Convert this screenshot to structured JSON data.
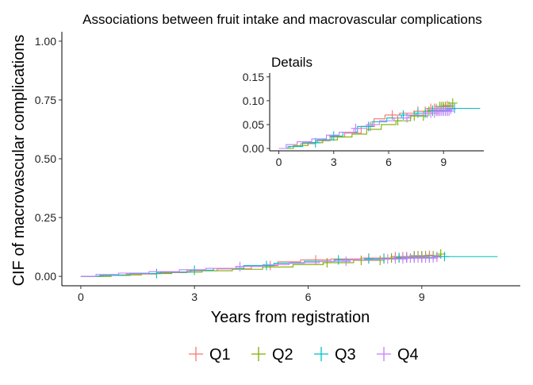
{
  "chart_data": {
    "type": "line",
    "step": true,
    "title": "Associations between fruit intake and macrovascular complications",
    "xlabel": "Years from registration",
    "ylabel": "CIF of macrovascular complications",
    "xlim": [
      0,
      11.2
    ],
    "ylim": [
      0,
      1.0
    ],
    "xticks": [
      0,
      3,
      6,
      9
    ],
    "xtick_labels": [
      "0",
      "3",
      "6",
      "9"
    ],
    "yticks": [
      0.0,
      0.25,
      0.5,
      0.75,
      1.0
    ],
    "ytick_labels": [
      "0.00",
      "0.25",
      "0.50",
      "0.75",
      "1.00"
    ],
    "grid": false,
    "legend_position": "bottom",
    "series": [
      {
        "name": "Q1",
        "color": "#F8766D",
        "x": [
          0,
          0.6,
          1.2,
          2.0,
          2.8,
          3.6,
          4.5,
          5.2,
          5.8,
          6.6,
          7.4,
          8.2,
          9.2
        ],
        "y": [
          0,
          0.004,
          0.01,
          0.016,
          0.024,
          0.032,
          0.046,
          0.062,
          0.07,
          0.074,
          0.078,
          0.084,
          0.09
        ],
        "censor_x": [
          5.0,
          6.2,
          7.6,
          8.0,
          8.3,
          8.5,
          8.6,
          8.8,
          8.9,
          9.0,
          9.2
        ]
      },
      {
        "name": "Q2",
        "color": "#7CAE00",
        "x": [
          0,
          0.8,
          1.6,
          2.4,
          3.2,
          4.0,
          4.8,
          5.6,
          6.4,
          7.2,
          8.0,
          8.8,
          9.5
        ],
        "y": [
          0,
          0.006,
          0.012,
          0.018,
          0.024,
          0.03,
          0.04,
          0.05,
          0.058,
          0.068,
          0.078,
          0.088,
          0.095
        ],
        "censor_x": [
          6.5,
          7.4,
          7.9,
          8.2,
          8.4,
          8.6,
          8.7,
          8.8,
          8.9,
          9.0,
          9.1,
          9.3,
          9.5
        ]
      },
      {
        "name": "Q3",
        "color": "#00BFC4",
        "x": [
          0,
          0.5,
          1.3,
          2.1,
          2.9,
          3.5,
          4.3,
          5.1,
          5.9,
          6.7,
          7.5,
          8.3,
          9.3,
          11.0
        ],
        "y": [
          0,
          0.004,
          0.012,
          0.018,
          0.026,
          0.034,
          0.046,
          0.056,
          0.064,
          0.07,
          0.074,
          0.08,
          0.084,
          0.084
        ],
        "censor_x": [
          2.0,
          3.0,
          4.9,
          6.8,
          7.6,
          8.0,
          8.4,
          8.6,
          8.8,
          9.0,
          9.2,
          9.4,
          9.6
        ]
      },
      {
        "name": "Q4",
        "color": "#C77CFF",
        "x": [
          0,
          0.4,
          1.0,
          1.8,
          2.6,
          3.3,
          4.1,
          4.8,
          5.5,
          6.3,
          7.1,
          7.9,
          8.6,
          9.4
        ],
        "y": [
          0,
          0.008,
          0.014,
          0.02,
          0.028,
          0.034,
          0.042,
          0.05,
          0.058,
          0.064,
          0.07,
          0.074,
          0.078,
          0.082
        ],
        "censor_x": [
          4.2,
          7.0,
          8.1,
          8.3,
          8.5,
          8.6,
          8.7,
          8.8,
          8.9,
          9.0,
          9.1,
          9.2,
          9.3,
          9.4
        ]
      }
    ],
    "inset": {
      "title": "Details",
      "xlim": [
        -0.5,
        11.2
      ],
      "ylim": [
        0,
        0.15
      ],
      "xticks": [
        0,
        3,
        6,
        9
      ],
      "xtick_labels": [
        "0",
        "3",
        "6",
        "9"
      ],
      "yticks": [
        0.0,
        0.05,
        0.1,
        0.15
      ],
      "ytick_labels": [
        "0.00",
        "0.05",
        "0.10",
        "0.15"
      ]
    }
  }
}
